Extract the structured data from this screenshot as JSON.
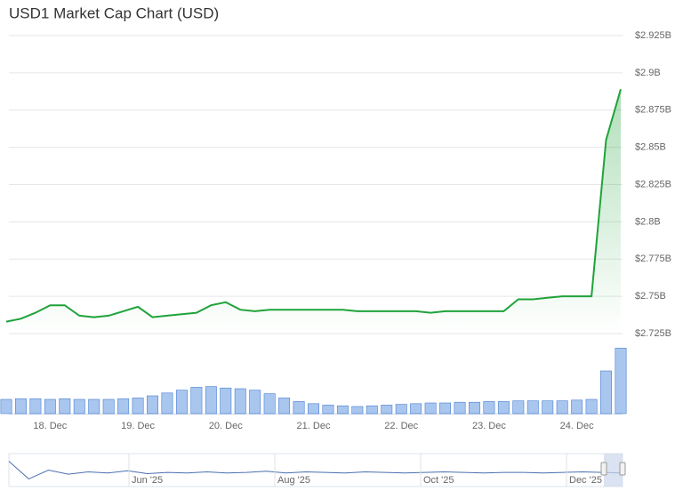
{
  "chart_data": {
    "type": "line",
    "title": "USD1 Market Cap Chart (USD)",
    "categories": [
      null,
      null,
      null,
      "18. Dec",
      null,
      null,
      null,
      null,
      null,
      "19. Dec",
      null,
      null,
      null,
      null,
      null,
      "20. Dec",
      null,
      null,
      null,
      null,
      null,
      "21. Dec",
      null,
      null,
      null,
      null,
      null,
      "22. Dec",
      null,
      null,
      null,
      null,
      null,
      "23. Dec",
      null,
      null,
      null,
      null,
      null,
      "24. Dec",
      null,
      null,
      null
    ],
    "series": [
      {
        "name": "Market Cap",
        "color": "#1fa33a",
        "values": [
          2733000000,
          2735000000,
          2739000000,
          2744000000,
          2744000000,
          2737000000,
          2736000000,
          2737000000,
          2740000000,
          2743000000,
          2736000000,
          2737000000,
          2738000000,
          2739000000,
          2744000000,
          2746000000,
          2741000000,
          2740000000,
          2741000000,
          2741000000,
          2741000000,
          2741000000,
          2741000000,
          2741000000,
          2740000000,
          2740000000,
          2740000000,
          2740000000,
          2740000000,
          2739000000,
          2740000000,
          2740000000,
          2740000000,
          2740000000,
          2740000000,
          2748000000,
          2748000000,
          2749000000,
          2750000000,
          2750000000,
          2750000000,
          2855000000,
          2889000000
        ]
      },
      {
        "name": "Volume",
        "color": "#a9c6ef",
        "axis": "y2",
        "values": [
          20,
          21,
          21,
          20,
          21,
          20,
          20,
          20,
          21,
          22,
          25,
          29,
          33,
          37,
          38,
          36,
          35,
          33,
          28,
          22,
          17,
          14,
          12,
          11,
          10,
          11,
          12,
          13,
          14,
          15,
          15,
          16,
          16,
          17,
          17,
          18,
          18,
          18,
          18,
          19,
          20,
          60,
          92
        ]
      }
    ],
    "ylim": [
      2725000000,
      2925000000
    ],
    "yticks": [
      {
        "value": 2725000000,
        "label": "$2.725B"
      },
      {
        "value": 2750000000,
        "label": "$2.75B"
      },
      {
        "value": 2775000000,
        "label": "$2.775B"
      },
      {
        "value": 2800000000,
        "label": "$2.8B"
      },
      {
        "value": 2825000000,
        "label": "$2.825B"
      },
      {
        "value": 2850000000,
        "label": "$2.85B"
      },
      {
        "value": 2875000000,
        "label": "$2.875B"
      },
      {
        "value": 2900000000,
        "label": "$2.9B"
      },
      {
        "value": 2925000000,
        "label": "$2.925B"
      }
    ],
    "y2lim": [
      0,
      100
    ],
    "grid": true,
    "navigator": {
      "color": "#4a6fb0",
      "values": [
        40,
        10,
        25,
        18,
        22,
        20,
        24,
        19,
        21,
        20,
        22,
        20,
        21,
        23,
        20,
        22,
        21,
        20,
        22,
        21,
        20,
        21,
        22,
        21,
        20,
        21,
        21,
        20,
        21,
        22,
        21,
        20
      ],
      "ylim": [
        0,
        50
      ],
      "labels": [
        "Jun '25",
        "Aug '25",
        "Oct '25",
        "Dec '25"
      ]
    }
  }
}
